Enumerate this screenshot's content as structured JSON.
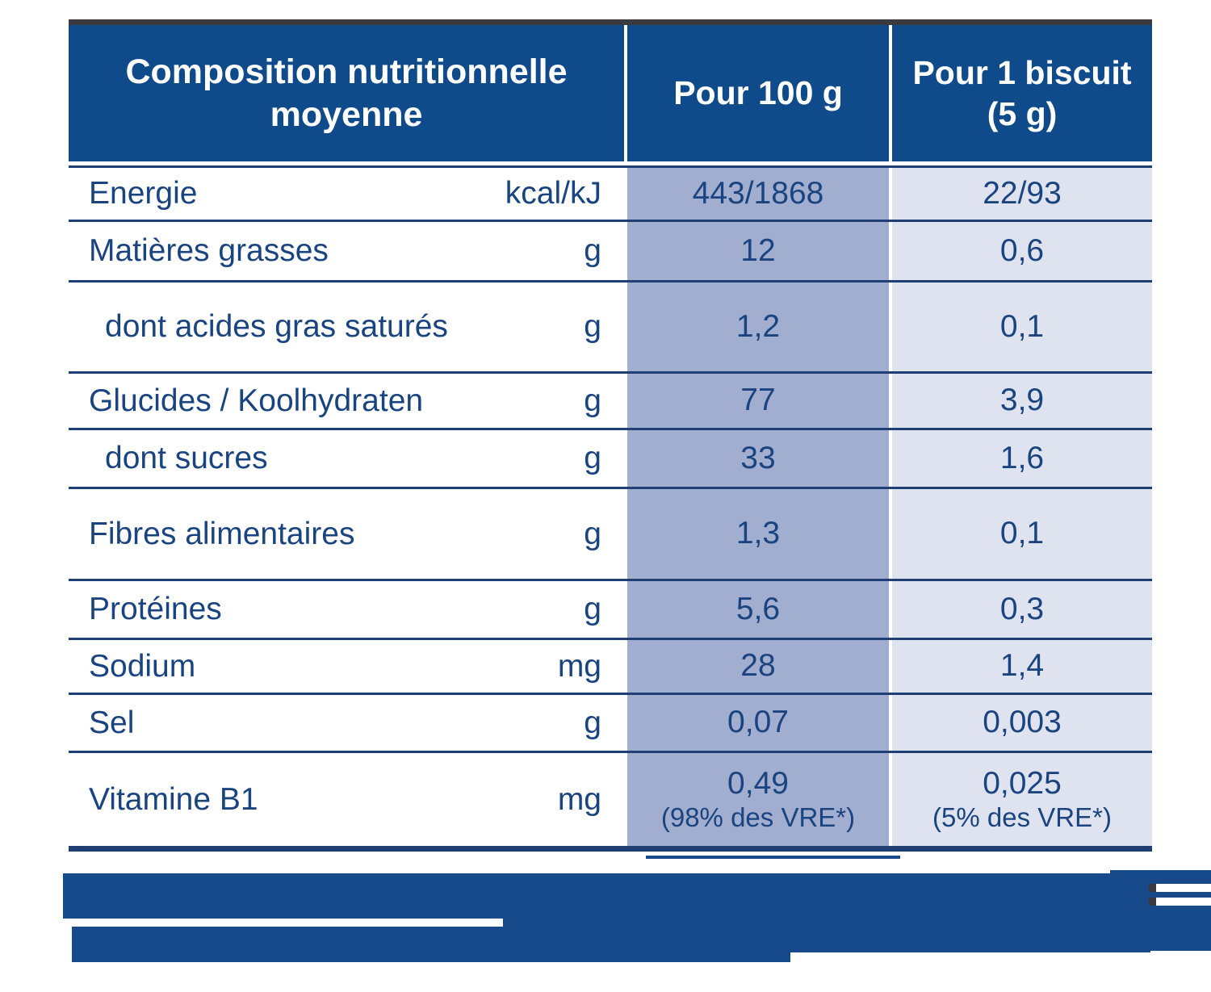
{
  "table": {
    "header": {
      "composition": "Composition nutritionnelle moyenne",
      "per_100g": "Pour 100 g",
      "per_biscuit_line1": "Pour 1 biscuit",
      "per_biscuit_line2": "(5 g)"
    },
    "rows": [
      {
        "label": "Energie",
        "unit": "kcal/kJ",
        "per_100g": "443/1868",
        "per_biscuit": "22/93"
      },
      {
        "label": "Matières grasses",
        "unit": "g",
        "per_100g": "12",
        "per_biscuit": "0,6"
      },
      {
        "label": "dont acides gras saturés",
        "unit": "g",
        "per_100g": "1,2",
        "per_biscuit": "0,1"
      },
      {
        "label": "Glucides / Koolhydraten",
        "unit": "g",
        "per_100g": "77",
        "per_biscuit": "3,9"
      },
      {
        "label": "dont sucres",
        "unit": "g",
        "per_100g": "33",
        "per_biscuit": "1,6"
      },
      {
        "label": "Fibres alimentaires",
        "unit": "g",
        "per_100g": "1,3",
        "per_biscuit": "0,1"
      },
      {
        "label": "Protéines",
        "unit": "g",
        "per_100g": "5,6",
        "per_biscuit": "0,3"
      },
      {
        "label": "Sodium",
        "unit": "mg",
        "per_100g": "28",
        "per_biscuit": "1,4"
      },
      {
        "label": "Sel",
        "unit": "g",
        "per_100g": "0,07",
        "per_biscuit": "0,003"
      },
      {
        "label": "Vitamine B1",
        "unit": "mg",
        "per_100g": "0,49",
        "per_100g_note": "(98% des VRE*)",
        "per_biscuit": "0,025",
        "per_biscuit_note": "(5% des VRE*)"
      }
    ],
    "footnote": {
      "redacted": true
    }
  },
  "colors": {
    "header_blue": "#0f4a8a",
    "column_100g_bg": "#a2aecf",
    "column_biscuit_bg": "#dfe3ef",
    "row_line": "#1e3e75",
    "text": "#1a4480",
    "redaction_blue": "#164a8a",
    "top_strip": "#3a3a3e"
  }
}
